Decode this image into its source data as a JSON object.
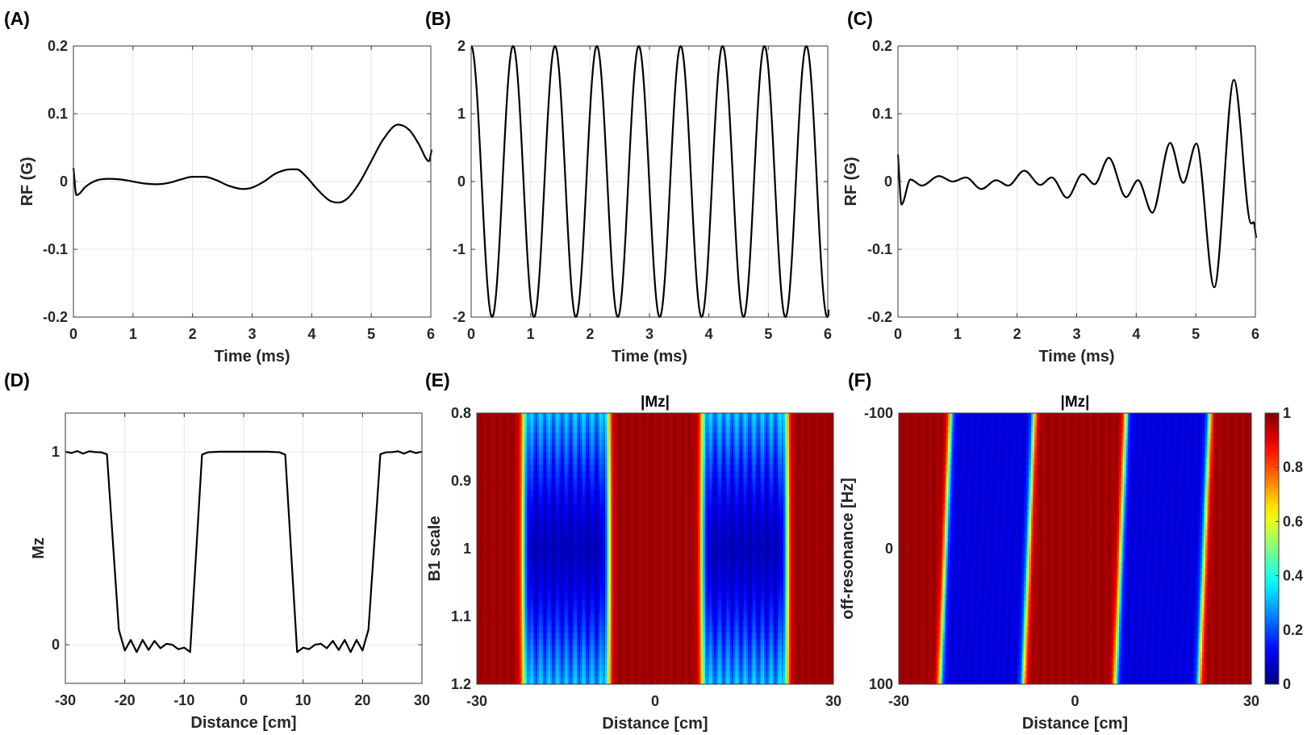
{
  "chart_data": [
    {
      "id": "A",
      "letter": "(A)",
      "type": "line",
      "smooth": true,
      "title": "",
      "xlabel": "Time (ms)",
      "ylabel": "RF (G)",
      "xlim": [
        0,
        6
      ],
      "ylim": [
        -0.2,
        0.2
      ],
      "grid": true,
      "xticks": [
        0,
        1,
        2,
        3,
        4,
        5,
        6
      ],
      "xtick_labels": [
        "0",
        "1",
        "2",
        "3",
        "4",
        "5",
        "6"
      ],
      "yticks": [
        -0.2,
        -0.1,
        0,
        0.1,
        0.2
      ],
      "ytick_labels": [
        "-0.2",
        "-0.1",
        "0",
        "0.1",
        "0.2"
      ],
      "x": [
        0,
        0.05,
        0.1,
        0.2,
        0.4,
        0.6,
        0.8,
        1.0,
        1.2,
        1.4,
        1.6,
        1.8,
        2.0,
        2.2,
        2.4,
        2.6,
        2.85,
        3.0,
        3.2,
        3.4,
        3.65,
        3.75,
        3.9,
        4.1,
        4.3,
        4.45,
        4.6,
        4.8,
        5.0,
        5.2,
        5.45,
        5.65,
        5.8,
        5.97,
        6.03
      ],
      "y": [
        0.02,
        -0.02,
        -0.018,
        -0.008,
        0.002,
        0.004,
        0.003,
        0,
        -0.003,
        -0.004,
        -0.002,
        0.003,
        0.007,
        0.007,
        0.002,
        -0.006,
        -0.011,
        -0.009,
        0,
        0.012,
        0.018,
        0.018,
        0.008,
        -0.012,
        -0.028,
        -0.031,
        -0.025,
        -0.002,
        0.03,
        0.062,
        0.084,
        0.075,
        0.055,
        0.03,
        0.047
      ],
      "color": "#000000"
    },
    {
      "id": "B",
      "letter": "(B)",
      "type": "line",
      "smooth": false,
      "title": "",
      "xlabel": "Time (ms)",
      "ylabel": "",
      "xlim": [
        0,
        6
      ],
      "ylim": [
        -2,
        2
      ],
      "grid": true,
      "xticks": [
        0,
        1,
        2,
        3,
        4,
        5,
        6
      ],
      "xtick_labels": [
        "0",
        "1",
        "2",
        "3",
        "4",
        "5",
        "6"
      ],
      "yticks": [
        -2,
        -1,
        0,
        1,
        2
      ],
      "ytick_labels": [
        "-2",
        "-1",
        "0",
        "1",
        "2"
      ],
      "waveform": {
        "shape": "cosine",
        "amplitude": 2,
        "period_ms": 0.705,
        "t_start": 0,
        "t_end": 6.03
      },
      "color": "#000000"
    },
    {
      "id": "C",
      "letter": "(C)",
      "type": "line",
      "smooth": true,
      "title": "",
      "xlabel": "Time (ms)",
      "ylabel": "RF (G)",
      "xlim": [
        0,
        6
      ],
      "ylim": [
        -0.2,
        0.2
      ],
      "grid": true,
      "xticks": [
        0,
        1,
        2,
        3,
        4,
        5,
        6
      ],
      "xtick_labels": [
        "0",
        "1",
        "2",
        "3",
        "4",
        "5",
        "6"
      ],
      "yticks": [
        -0.2,
        -0.1,
        0,
        0.1,
        0.2
      ],
      "ytick_labels": [
        "-0.2",
        "-0.1",
        "0",
        "0.1",
        "0.2"
      ],
      "x": [
        0,
        0.06,
        0.21,
        0.4,
        0.69,
        0.92,
        1.14,
        1.4,
        1.65,
        1.85,
        2.12,
        2.39,
        2.58,
        2.84,
        3.1,
        3.3,
        3.54,
        3.83,
        4.03,
        4.27,
        4.57,
        4.79,
        5.01,
        5.31,
        5.64,
        5.93,
        5.97,
        6.03
      ],
      "y": [
        0.04,
        -0.034,
        0.003,
        -0.006,
        0.008,
        0,
        0.006,
        -0.011,
        0.002,
        -0.006,
        0.016,
        -0.005,
        0.006,
        -0.024,
        0.011,
        -0.004,
        0.035,
        -0.023,
        0.002,
        -0.046,
        0.057,
        -0.002,
        0.056,
        -0.156,
        0.15,
        -0.062,
        -0.06,
        -0.083
      ],
      "color": "#000000"
    },
    {
      "id": "D",
      "letter": "(D)",
      "type": "line",
      "smooth": false,
      "title": "",
      "xlabel": "Distance [cm]",
      "ylabel": "Mz",
      "xlim": [
        -30,
        30
      ],
      "ylim": [
        -0.2,
        1.2
      ],
      "grid": true,
      "xticks": [
        -30,
        -20,
        -10,
        0,
        10,
        20,
        30
      ],
      "xtick_labels": [
        "-30",
        "-20",
        "-10",
        "0",
        "10",
        "20",
        "30"
      ],
      "yticks": [
        0,
        1
      ],
      "ytick_labels": [
        "0",
        "1"
      ],
      "x": [
        -30,
        -29,
        -28,
        -27,
        -26,
        -25,
        -24,
        -23,
        -21,
        -20,
        -19,
        -18,
        -17,
        -16,
        -15,
        -14,
        -13,
        -12,
        -11,
        -10,
        -9,
        -7,
        -6,
        -4,
        0,
        4,
        6,
        7,
        9,
        10,
        11,
        12,
        13,
        14,
        15,
        16,
        17,
        18,
        19,
        20,
        21,
        23,
        24,
        25,
        26,
        27,
        28,
        29,
        30
      ],
      "y": [
        1.0,
        0.993,
        1.003,
        0.99,
        1.002,
        0.998,
        0.997,
        0.987,
        0.078,
        -0.03,
        0.025,
        -0.038,
        0.025,
        -0.027,
        0.02,
        -0.018,
        0.005,
        0,
        -0.023,
        -0.015,
        -0.038,
        0.985,
        0.997,
        1.0,
        1.0,
        1.0,
        0.997,
        0.985,
        -0.038,
        -0.015,
        -0.023,
        0,
        0.005,
        -0.018,
        0.02,
        -0.027,
        0.025,
        -0.038,
        0.025,
        -0.03,
        0.078,
        0.987,
        0.997,
        0.998,
        1.002,
        0.99,
        1.003,
        0.993,
        1.0
      ],
      "color": "#000000"
    },
    {
      "id": "E",
      "letter": "(E)",
      "type": "heatmap",
      "title": "|Mz|",
      "xlabel": "Distance [cm]",
      "ylabel": "B1 scale",
      "xlim": [
        -30,
        30
      ],
      "ylim": [
        0.8,
        1.2
      ],
      "y_reversed": true,
      "grid": false,
      "xticks": [
        -30,
        0,
        30
      ],
      "xtick_labels": [
        "-30",
        "0",
        "30"
      ],
      "yticks": [
        0.8,
        0.9,
        1,
        1.1,
        1.2
      ],
      "ytick_labels": [
        "0.8",
        "0.9",
        "1",
        "1.1",
        "1.2"
      ],
      "colormap": "jet",
      "clim": [
        0,
        1
      ],
      "model": {
        "band_edges_cm": [
          [
            -22.2,
            -7.8
          ],
          [
            7.9,
            22.2
          ]
        ],
        "edge_shift_cm_per_unit": 0,
        "reference_y": 1,
        "band_floor": 0.04,
        "floor_curvature": 4.5,
        "ripple_amplitude": 0.14,
        "ripple_period_cm": 1.45,
        "edge_width_cm": 0.3
      }
    },
    {
      "id": "F",
      "letter": "(F)",
      "type": "heatmap",
      "title": "|Mz|",
      "xlabel": "Distance [cm]",
      "ylabel": "off-resonance [Hz]",
      "xlim": [
        -30,
        30
      ],
      "ylim": [
        -100,
        100
      ],
      "y_reversed": true,
      "grid": false,
      "xticks": [
        -30,
        0,
        30
      ],
      "xtick_labels": [
        "-30",
        "0",
        "30"
      ],
      "yticks": [
        -100,
        0,
        100
      ],
      "ytick_labels": [
        "-100",
        "0",
        "100"
      ],
      "colormap": "jet",
      "clim": [
        0,
        1
      ],
      "colorbar": {
        "ticks": [
          0,
          0.2,
          0.4,
          0.6,
          0.8,
          1
        ],
        "tick_labels": [
          "0",
          "0.2",
          "0.4",
          "0.6",
          "0.8",
          "1"
        ]
      },
      "model": {
        "band_edges_cm": [
          [
            -22.05,
            -7.9
          ],
          [
            7.8,
            22.0
          ]
        ],
        "edge_shift_cm_per_unit": -0.0092,
        "reference_y": 0,
        "band_floor": 0.07,
        "floor_curvature": 0,
        "ripple_amplitude": 0.04,
        "ripple_period_cm": 1.2,
        "edge_width_cm": 0.3
      }
    }
  ]
}
